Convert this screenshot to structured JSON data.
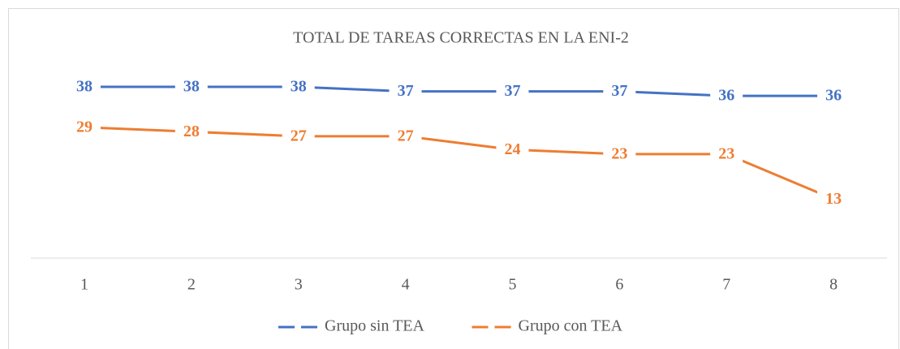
{
  "chart_data": {
    "type": "line",
    "title": "TOTAL DE TAREAS CORRECTAS EN LA ENI-2",
    "categories": [
      "1",
      "2",
      "3",
      "4",
      "5",
      "6",
      "7",
      "8"
    ],
    "series": [
      {
        "name": "Grupo sin TEA",
        "color": "#4472c4",
        "values": [
          38,
          38,
          38,
          37,
          37,
          37,
          36,
          36
        ]
      },
      {
        "name": "Grupo con TEA",
        "color": "#ed7d31",
        "values": [
          29,
          28,
          27,
          27,
          24,
          23,
          23,
          13
        ]
      }
    ],
    "ylim": [
      0,
      40
    ],
    "legend": "bottom"
  }
}
